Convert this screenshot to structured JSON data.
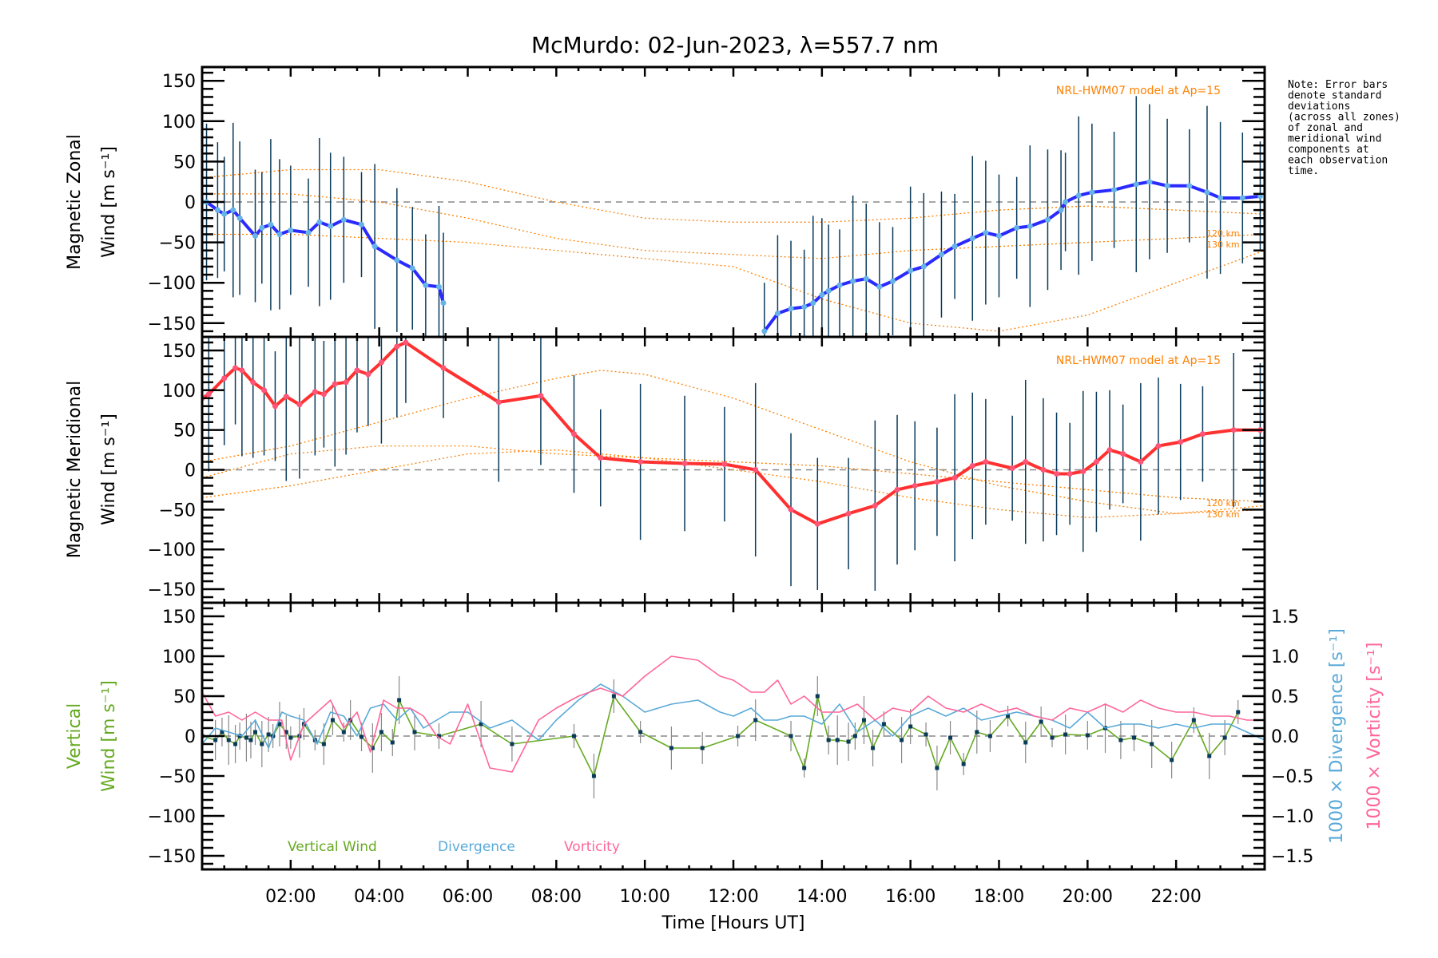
{
  "chart_data": [
    {
      "type": "line",
      "panel": "zonal",
      "title": "McMurdo: 02-Jun-2023, λ=557.7 nm",
      "xlabel": "Time [Hours UT]",
      "ylabel_line1": "Magnetic Zonal",
      "ylabel_line2": "Wind [m s⁻¹]",
      "xlim": [
        0,
        24
      ],
      "ylim": [
        -167,
        167
      ],
      "yticks": [
        -150,
        -100,
        -50,
        0,
        50,
        100,
        150
      ],
      "model_label": "NRL-HWM07 model at Ap=15",
      "model_alt_labels": [
        "120 km",
        "130 km"
      ],
      "series": [
        {
          "name": "Zonal wind (mean)",
          "color": "#2a2aff",
          "x": [
            0.0,
            0.1,
            0.35,
            0.5,
            0.7,
            0.85,
            1.2,
            1.35,
            1.55,
            1.75,
            2.0,
            2.4,
            2.65,
            2.9,
            3.2,
            3.6,
            3.9,
            4.4,
            4.75,
            5.05,
            5.35,
            5.45
          ],
          "y": [
            0,
            0,
            -10,
            -15,
            -10,
            -20,
            -42,
            -32,
            -28,
            -40,
            -35,
            -38,
            -25,
            -30,
            -22,
            -28,
            -55,
            -72,
            -82,
            -103,
            -105,
            -125
          ]
        },
        {
          "name": "Zonal wind (mean, continued)",
          "color": "#2a2aff",
          "x": [
            12.7,
            13.0,
            13.3,
            13.6,
            13.8,
            14.0,
            14.15,
            14.4,
            14.7,
            15.0,
            15.3,
            15.6,
            16.0,
            16.3,
            16.7,
            17.0,
            17.4,
            17.7,
            18.0,
            18.4,
            18.7,
            19.1,
            19.4,
            19.5,
            19.8,
            20.1,
            20.6,
            21.1,
            21.4,
            21.8,
            22.3,
            22.7,
            23.0,
            23.5,
            23.9
          ],
          "y": [
            -160,
            -138,
            -132,
            -130,
            -125,
            -115,
            -110,
            -103,
            -98,
            -95,
            -105,
            -98,
            -85,
            -80,
            -65,
            -55,
            -45,
            -38,
            -42,
            -32,
            -30,
            -22,
            -10,
            0,
            8,
            12,
            15,
            22,
            25,
            20,
            20,
            12,
            5,
            5,
            7
          ]
        }
      ],
      "models": [
        {
          "name": "HWM07 upper",
          "x": [
            0,
            2,
            4,
            6,
            8,
            10,
            12,
            14,
            16,
            18,
            20,
            22,
            24
          ],
          "y": [
            30,
            40,
            40,
            25,
            0,
            -20,
            -25,
            -25,
            -20,
            -10,
            -5,
            -10,
            -15
          ]
        },
        {
          "name": "HWM07 mid",
          "x": [
            0,
            2,
            4,
            6,
            8,
            10,
            12,
            14,
            16,
            18,
            20,
            22,
            24
          ],
          "y": [
            10,
            10,
            0,
            -20,
            -45,
            -60,
            -65,
            -70,
            -60,
            -55,
            -50,
            -45,
            -40
          ]
        },
        {
          "name": "HWM07 low",
          "x": [
            0,
            2,
            4,
            6,
            8,
            10,
            12,
            14,
            16,
            18,
            20,
            22,
            24
          ],
          "y": [
            -40,
            -40,
            -45,
            -50,
            -60,
            -70,
            -80,
            -120,
            -150,
            -160,
            -140,
            -100,
            -60
          ]
        }
      ]
    },
    {
      "type": "line",
      "panel": "meridional",
      "ylabel_line1": "Magnetic Meridional",
      "ylabel_line2": "Wind [m s⁻¹]",
      "xlim": [
        0,
        24
      ],
      "ylim": [
        -167,
        167
      ],
      "yticks": [
        -150,
        -100,
        -50,
        0,
        50,
        100,
        150
      ],
      "model_label": "NRL-HWM07 model at Ap=15",
      "model_alt_labels": [
        "120 km",
        "130 km"
      ],
      "series": [
        {
          "name": "Meridional wind (mean)",
          "color": "#ff3030",
          "x": [
            0.0,
            0.15,
            0.5,
            0.75,
            0.9,
            1.15,
            1.4,
            1.65,
            1.9,
            2.2,
            2.55,
            2.75,
            3.0,
            3.25,
            3.5,
            3.75,
            4.05,
            4.4,
            4.6,
            5.45,
            6.7,
            7.65,
            8.4,
            9.0,
            9.9,
            10.9,
            11.8,
            12.5,
            13.3,
            13.9,
            14.6,
            15.2,
            15.7,
            16.1,
            16.6,
            17.0,
            17.4,
            17.7,
            18.3,
            18.6,
            19.0,
            19.3,
            19.6,
            19.9,
            20.2,
            20.5,
            20.8,
            21.2,
            21.6,
            22.1,
            22.6,
            23.3,
            23.9
          ],
          "y": [
            90,
            95,
            115,
            128,
            125,
            110,
            100,
            80,
            92,
            82,
            98,
            95,
            108,
            110,
            125,
            120,
            135,
            155,
            160,
            128,
            85,
            93,
            45,
            15,
            10,
            8,
            7,
            0,
            -50,
            -68,
            -55,
            -45,
            -25,
            -20,
            -15,
            -10,
            5,
            10,
            2,
            10,
            0,
            -5,
            -5,
            -2,
            10,
            25,
            20,
            10,
            30,
            35,
            45,
            50,
            50
          ]
        }
      ],
      "models": [
        {
          "name": "HWM07 upper",
          "x": [
            0,
            2,
            4,
            6,
            8,
            9,
            10,
            12,
            14,
            16,
            18,
            20,
            22,
            24
          ],
          "y": [
            10,
            30,
            60,
            90,
            115,
            125,
            120,
            90,
            50,
            10,
            -20,
            -40,
            -55,
            -50
          ]
        },
        {
          "name": "HWM07 mid",
          "x": [
            0,
            2,
            4,
            6,
            8,
            10,
            12,
            14,
            16,
            18,
            20,
            22,
            24
          ],
          "y": [
            -10,
            20,
            30,
            30,
            20,
            15,
            10,
            5,
            -5,
            -15,
            -25,
            -35,
            -40
          ]
        },
        {
          "name": "HWM07 low",
          "x": [
            0,
            2,
            4,
            6,
            8,
            10,
            12,
            14,
            16,
            18,
            20,
            22,
            24
          ],
          "y": [
            -35,
            -20,
            0,
            20,
            25,
            15,
            0,
            -15,
            -35,
            -50,
            -60,
            -55,
            -45
          ]
        }
      ]
    },
    {
      "type": "line",
      "panel": "vertical",
      "ylabel_line1": "Vertical",
      "ylabel_line2": "Wind [m s⁻¹]",
      "ylabel_right1": "1000 × Divergence [s⁻¹]",
      "ylabel_right2": "1000 × Vorticity [s⁻¹]",
      "xlim": [
        0,
        24
      ],
      "ylim": [
        -167,
        167
      ],
      "yticks": [
        -150,
        -100,
        -50,
        0,
        50,
        100,
        150
      ],
      "ylim_right": [
        -1.67,
        1.67
      ],
      "yticks_right": [
        "−1.5",
        "−1.0",
        "−0.5",
        "0.0",
        "0.5",
        "1.0",
        "1.5"
      ],
      "yticks_right_values": [
        -1.5,
        -1.0,
        -0.5,
        0.0,
        0.5,
        1.0,
        1.5
      ],
      "legend": [
        "Vertical Wind",
        "Divergence",
        "Vorticity"
      ],
      "series": [
        {
          "name": "Vertical Wind",
          "color": "#66aa22",
          "x": [
            0.0,
            0.3,
            0.45,
            0.6,
            0.75,
            0.85,
            1.0,
            1.1,
            1.2,
            1.35,
            1.5,
            1.6,
            1.75,
            1.9,
            2.0,
            2.2,
            2.3,
            2.55,
            2.75,
            2.95,
            3.2,
            3.35,
            3.6,
            3.85,
            4.05,
            4.3,
            4.45,
            4.8,
            5.35,
            6.3,
            7.0,
            8.4,
            8.85,
            9.3,
            9.9,
            10.6,
            11.3,
            12.1,
            12.5,
            13.3,
            13.6,
            13.9,
            14.15,
            14.35,
            14.6,
            14.75,
            14.95,
            15.15,
            15.4,
            15.8,
            16.0,
            16.35,
            16.6,
            16.9,
            17.2,
            17.5,
            17.8,
            18.2,
            18.6,
            18.95,
            19.2,
            19.5,
            20.0,
            20.4,
            20.75,
            21.05,
            21.45,
            21.9,
            22.4,
            22.75,
            23.1,
            23.4
          ],
          "y": [
            0,
            -5,
            5,
            -5,
            -10,
            0,
            -2,
            -5,
            5,
            -10,
            2,
            0,
            15,
            5,
            -2,
            0,
            15,
            -5,
            -10,
            20,
            5,
            20,
            -1,
            -15,
            5,
            -8,
            45,
            5,
            0,
            15,
            -10,
            0,
            -50,
            50,
            5,
            -15,
            -15,
            0,
            20,
            0,
            -40,
            50,
            -5,
            -5,
            -7,
            0,
            20,
            -15,
            15,
            -5,
            12,
            2,
            -40,
            -2,
            -35,
            5,
            0,
            25,
            -8,
            18,
            -2,
            2,
            1,
            10,
            -5,
            -2,
            -10,
            -30,
            20,
            -25,
            -2,
            30
          ]
        },
        {
          "name": "Divergence",
          "color": "#5aaad8",
          "x": [
            0.0,
            0.3,
            0.6,
            0.9,
            1.2,
            1.5,
            1.8,
            2.0,
            2.3,
            2.6,
            2.9,
            3.2,
            3.5,
            3.8,
            4.1,
            4.4,
            4.7,
            5.0,
            5.3,
            5.6,
            6.0,
            6.5,
            7.0,
            7.6,
            8.0,
            8.5,
            9.0,
            9.5,
            10.0,
            10.6,
            11.2,
            11.7,
            12.0,
            12.4,
            12.7,
            13.0,
            13.3,
            13.6,
            14.0,
            14.4,
            14.8,
            15.2,
            15.6,
            16.0,
            16.4,
            16.8,
            17.2,
            17.6,
            18.0,
            18.4,
            18.8,
            19.2,
            19.6,
            20.0,
            20.4,
            20.8,
            21.2,
            21.6,
            22.0,
            22.4,
            22.8,
            23.2,
            23.6,
            24.0
          ],
          "y": [
            -0.1,
            0.1,
            0.05,
            0.0,
            0.2,
            -0.15,
            0.3,
            0.25,
            0.2,
            -0.1,
            0.3,
            0.25,
            0.0,
            0.35,
            0.4,
            0.2,
            0.35,
            0.1,
            0.2,
            0.3,
            0.3,
            0.1,
            0.2,
            -0.05,
            0.2,
            0.45,
            0.65,
            0.5,
            0.3,
            0.4,
            0.45,
            0.3,
            0.25,
            0.35,
            0.2,
            0.2,
            0.25,
            0.25,
            0.15,
            0.4,
            0.05,
            0.2,
            0.0,
            0.25,
            0.35,
            0.25,
            0.35,
            0.2,
            0.25,
            0.3,
            0.25,
            0.2,
            0.1,
            0.3,
            0.1,
            0.15,
            0.15,
            0.1,
            0.15,
            0.1,
            0.15,
            0.15,
            0.05,
            -0.05
          ]
        },
        {
          "name": "Vorticity",
          "color": "#ff6699",
          "x": [
            0.0,
            0.3,
            0.6,
            0.9,
            1.2,
            1.5,
            1.8,
            2.0,
            2.3,
            2.6,
            2.9,
            3.2,
            3.5,
            3.8,
            4.1,
            4.4,
            4.7,
            5.0,
            5.3,
            5.6,
            6.0,
            6.5,
            7.0,
            7.6,
            8.0,
            8.5,
            9.0,
            9.5,
            10.0,
            10.6,
            11.2,
            11.7,
            12.0,
            12.4,
            12.7,
            13.0,
            13.3,
            13.6,
            14.0,
            14.4,
            14.8,
            15.2,
            15.6,
            16.0,
            16.4,
            16.8,
            17.2,
            17.6,
            18.0,
            18.4,
            18.8,
            19.2,
            19.6,
            20.0,
            20.4,
            20.8,
            21.2,
            21.6,
            22.0,
            22.4,
            22.8,
            23.2,
            23.6,
            24.0
          ],
          "y": [
            0.55,
            0.25,
            0.3,
            0.2,
            0.3,
            0.2,
            0.2,
            -0.3,
            0.15,
            0.3,
            0.45,
            0.1,
            0.3,
            -0.2,
            0.45,
            0.35,
            0.35,
            0.25,
            0.0,
            -0.1,
            0.4,
            -0.4,
            -0.45,
            0.2,
            0.35,
            0.5,
            0.6,
            0.5,
            0.75,
            1.0,
            0.95,
            0.75,
            0.7,
            0.55,
            0.55,
            0.7,
            0.4,
            0.5,
            0.3,
            0.3,
            0.4,
            0.2,
            0.35,
            0.3,
            0.5,
            0.35,
            0.3,
            0.4,
            0.3,
            0.35,
            0.25,
            0.2,
            0.35,
            0.3,
            0.4,
            0.3,
            0.45,
            0.35,
            0.3,
            0.3,
            0.25,
            0.25,
            0.2,
            0.2
          ]
        }
      ]
    }
  ],
  "xticks": [
    "02:00",
    "04:00",
    "06:00",
    "08:00",
    "10:00",
    "12:00",
    "14:00",
    "16:00",
    "18:00",
    "20:00",
    "22:00"
  ],
  "xtick_values": [
    2,
    4,
    6,
    8,
    10,
    12,
    14,
    16,
    18,
    20,
    22
  ],
  "title": "McMurdo: 02-Jun-2023, λ=557.7 nm",
  "xlabel": "Time [Hours UT]",
  "note_lines": [
    "Note: Error bars",
    "denote standard",
    "deviations",
    "(across all zones)",
    "of zonal and",
    "meridional wind",
    "components at",
    "each observation",
    "time."
  ]
}
